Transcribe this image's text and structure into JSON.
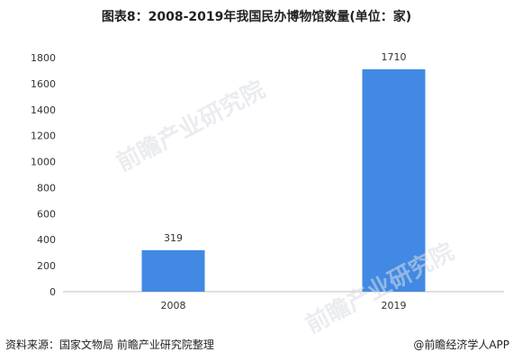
{
  "title": "图表8：2008-2019年我国民办博物馆数量(单位：家)",
  "source": "资料来源：国家文物局 前瞻产业研究院整理",
  "brand": "@前瞻经济学人APP",
  "watermark": "前瞻产业研究院",
  "colors": {
    "bar": "#4189e3",
    "axis": "#bfbfbf",
    "text": "#333333"
  },
  "chart_data": {
    "type": "bar",
    "title": "图表8：2008-2019年我国民办博物馆数量(单位：家)",
    "categories": [
      "2008",
      "2019"
    ],
    "values": [
      319,
      1710
    ],
    "xlabel": "",
    "ylabel": "",
    "ylim": [
      0,
      1800
    ],
    "yticks": [
      0,
      200,
      400,
      600,
      800,
      1000,
      1200,
      1400,
      1600,
      1800
    ],
    "grid": false,
    "data_labels": true
  }
}
